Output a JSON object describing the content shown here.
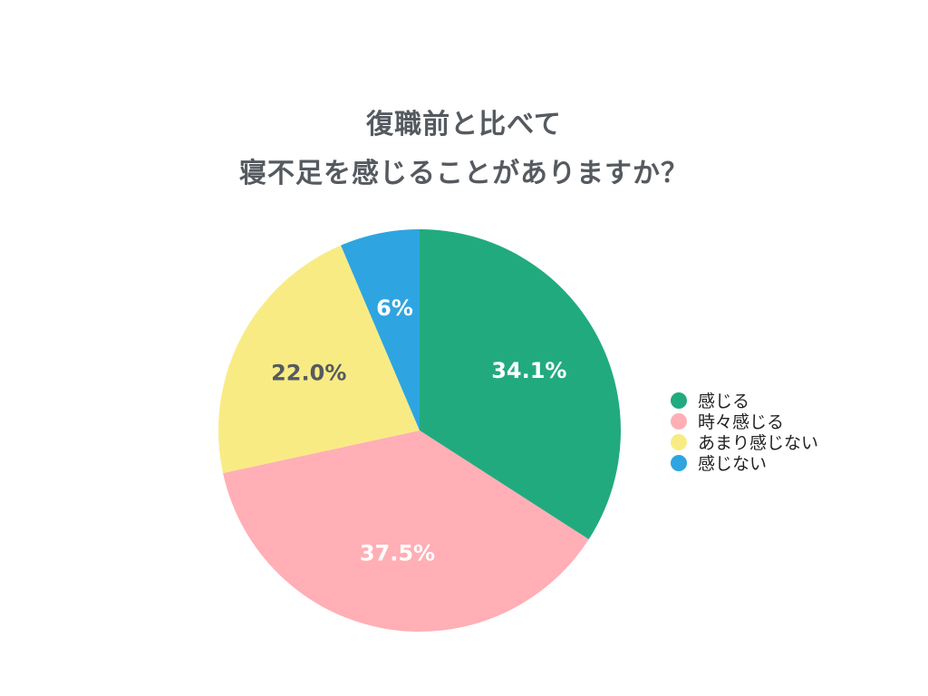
{
  "title": {
    "line1": "復職前と比べて",
    "line2": "寝不足を感じることがありますか？"
  },
  "chart_data": {
    "type": "pie",
    "title": "復職前と比べて 寝不足を感じることがありますか？",
    "slices": [
      {
        "name": "感じる",
        "value": 34.1,
        "label": "34.1%",
        "color": "#22aa7f",
        "label_color": "#ffffff"
      },
      {
        "name": "時々感じる",
        "value": 37.5,
        "label": "37.5%",
        "color": "#ffafb5",
        "label_color": "#ffffff"
      },
      {
        "name": "あまり感じない",
        "value": 22.0,
        "label": "22.0%",
        "color": "#f9eb84",
        "label_color": "#555a60"
      },
      {
        "name": "感じない",
        "value": 6.4,
        "label": "6%",
        "color": "#2ea5e0",
        "label_color": "#ffffff"
      }
    ],
    "start_angle_deg": 0,
    "direction": "clockwise",
    "legend": {
      "position": "right",
      "entries": [
        "感じる",
        "時々感じる",
        "あまり感じない",
        "感じない"
      ]
    }
  }
}
